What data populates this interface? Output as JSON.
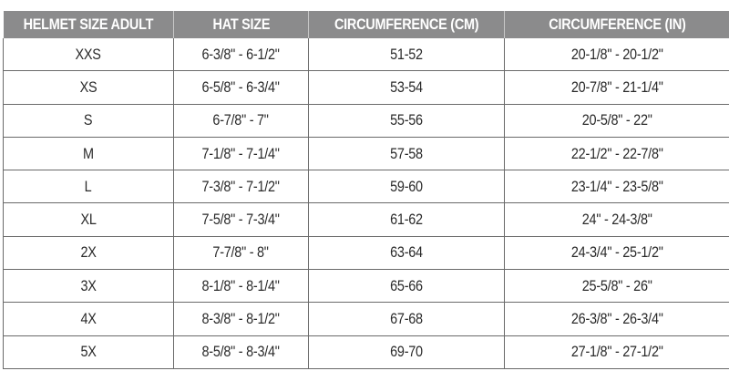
{
  "headers": [
    "HELMET SIZE ADULT",
    "HAT SIZE",
    "CIRCUMFERENCE (CM)",
    "CIRCUMFERENCE (IN)"
  ],
  "rows": [
    [
      "XXS",
      "6-3/8\" - 6-1/2\"",
      "51-52",
      "20-1/8\" - 20-1/2\""
    ],
    [
      "XS",
      "6-5/8\" - 6-3/4\"",
      "53-54",
      "20-7/8\" - 21-1/4\""
    ],
    [
      "S",
      "6-7/8\" - 7\"",
      "55-56",
      "20-5/8\" - 22\""
    ],
    [
      "M",
      "7-1/8\" - 7-1/4\"",
      "57-58",
      "22-1/2\" - 22-7/8\""
    ],
    [
      "L",
      "7-3/8\" - 7-1/2\"",
      "59-60",
      "23-1/4\" - 23-5/8\""
    ],
    [
      "XL",
      "7-5/8\" - 7-3/4\"",
      "61-62",
      "24\" - 24-3/8\""
    ],
    [
      "2X",
      "7-7/8\" - 8\"",
      "63-64",
      "24-3/4\" - 25-1/2\""
    ],
    [
      "3X",
      "8-1/8\" - 8-1/4\"",
      "65-66",
      "25-5/8\" - 26\""
    ],
    [
      "4X",
      "8-3/8\" - 8-1/2\"",
      "67-68",
      "26-3/8\" - 26-3/4\""
    ],
    [
      "5X",
      "8-5/8\" - 8-3/4\"",
      "69-70",
      "27-1/8\" - 27-1/2\""
    ]
  ],
  "colors": {
    "header_bg": "#8b8b8c",
    "header_text": "#ffffff",
    "border": "#6a6a6a"
  }
}
